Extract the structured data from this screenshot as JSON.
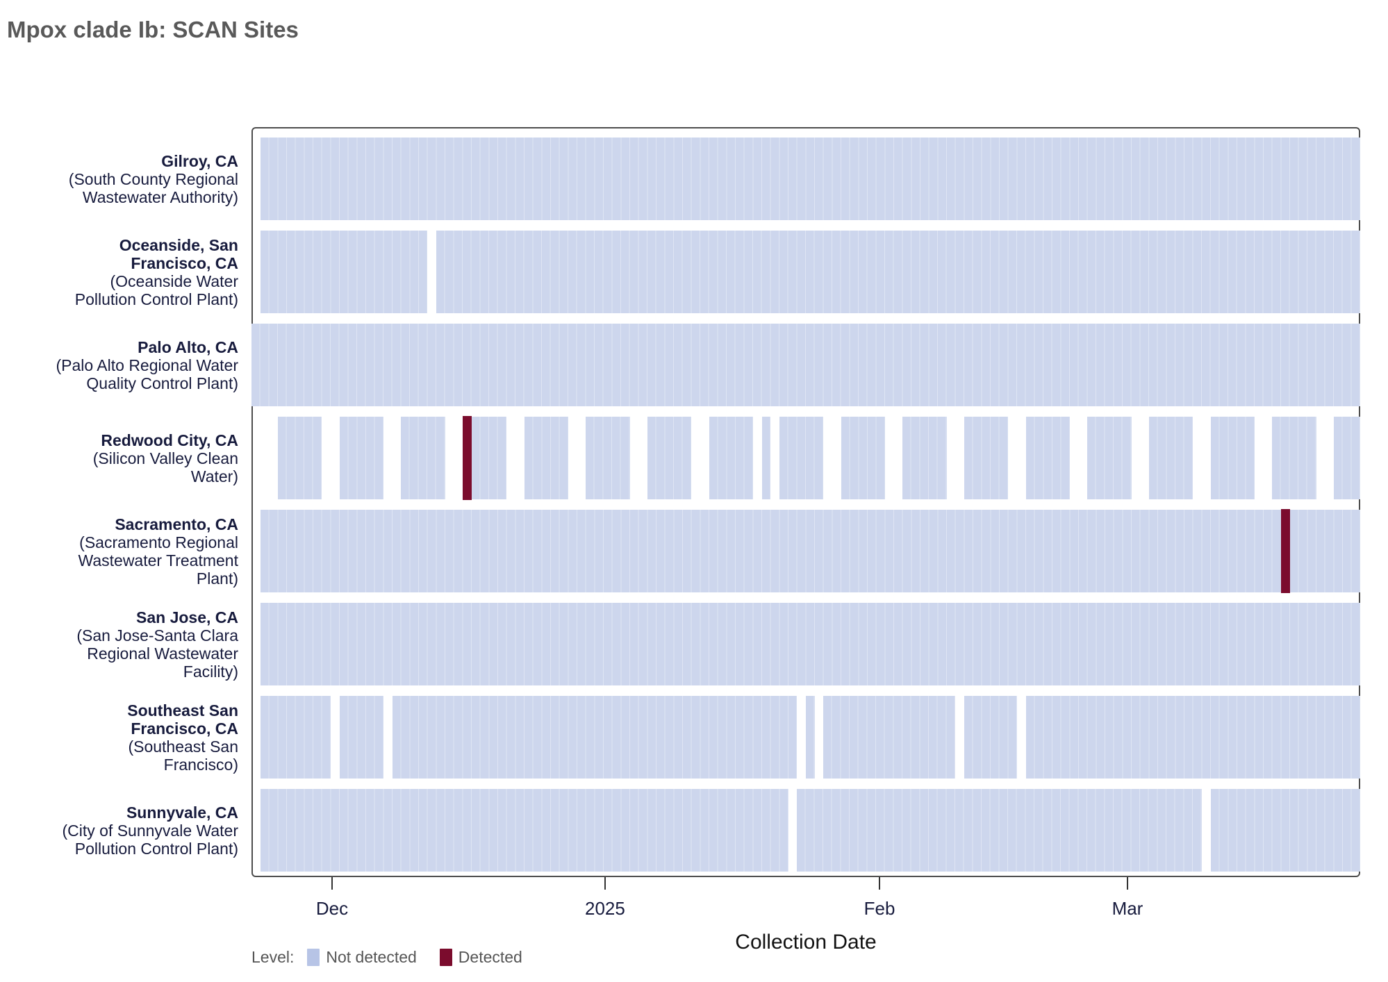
{
  "page": {
    "title": "Mpox clade Ib: SCAN Sites"
  },
  "x_axis": {
    "title": "Collection Date",
    "ticks": [
      {
        "label": "Dec",
        "day": 9.16
      },
      {
        "label": "2025",
        "day": 40.18
      },
      {
        "label": "Feb",
        "day": 71.37
      },
      {
        "label": "Mar",
        "day": 99.55
      }
    ]
  },
  "legend": {
    "label": "Level:",
    "items": [
      {
        "label": "Not detected",
        "color": "#b7c4e6"
      },
      {
        "label": "Detected",
        "color": "#7b0c2d"
      }
    ]
  },
  "colors": {
    "tile": "#cdd6ed",
    "tile_separator": "#dfe5f4",
    "detected": "#7b0c2d",
    "plot_border": "#4d4d4d",
    "title_text": "#595959",
    "axis_text": "#171b3d",
    "legend_text": "#555555"
  },
  "chart_data": {
    "type": "heatmap",
    "title": "Mpox clade Ib: SCAN Sites",
    "xlabel": "Collection Date",
    "x_tick_labels": [
      "Dec",
      "2025",
      "Feb",
      "Mar"
    ],
    "x_range_days": 126,
    "x_range_note": "daily tiles from late Nov 2024 through late Mar 2025",
    "legend_entries": [
      "Not detected",
      "Detected"
    ],
    "rows": [
      {
        "city_lines": [
          "Gilroy, CA"
        ],
        "facility_lines": [
          "(South County Regional",
          "Wastewater Authority)"
        ],
        "segments": [
          [
            1,
            125
          ]
        ],
        "detected_days": []
      },
      {
        "city_lines": [
          "Oceanside, San",
          "Francisco, CA"
        ],
        "facility_lines": [
          "(Oceanside Water",
          "Pollution Control Plant)"
        ],
        "segments": [
          [
            1,
            19
          ],
          [
            21,
            125
          ]
        ],
        "detected_days": []
      },
      {
        "city_lines": [
          "Palo Alto, CA"
        ],
        "facility_lines": [
          "(Palo Alto Regional Water",
          "Quality Control Plant)"
        ],
        "segments": [
          [
            0,
            125
          ]
        ],
        "detected_days": []
      },
      {
        "city_lines": [
          "Redwood City, CA"
        ],
        "facility_lines": [
          "(Silicon Valley Clean",
          "Water)"
        ],
        "segments": [
          [
            3,
            7
          ],
          [
            10,
            14
          ],
          [
            17,
            21
          ],
          [
            24,
            28
          ],
          [
            31,
            35
          ],
          [
            38,
            42
          ],
          [
            45,
            49
          ],
          [
            52,
            56
          ],
          [
            58,
            58
          ],
          [
            60,
            64
          ],
          [
            67,
            71
          ],
          [
            74,
            78
          ],
          [
            81,
            85
          ],
          [
            88,
            92
          ],
          [
            95,
            99
          ],
          [
            102,
            106
          ],
          [
            109,
            113
          ],
          [
            116,
            120
          ],
          [
            123,
            125
          ]
        ],
        "detected_days": [
          24
        ]
      },
      {
        "city_lines": [
          "Sacramento, CA"
        ],
        "facility_lines": [
          "(Sacramento Regional",
          "Wastewater Treatment",
          "Plant)"
        ],
        "segments": [
          [
            1,
            125
          ]
        ],
        "detected_days": [
          117
        ]
      },
      {
        "city_lines": [
          "San Jose, CA"
        ],
        "facility_lines": [
          "(San Jose-Santa Clara",
          "Regional Wastewater",
          "Facility)"
        ],
        "segments": [
          [
            1,
            125
          ]
        ],
        "detected_days": []
      },
      {
        "city_lines": [
          "Southeast San",
          "Francisco, CA"
        ],
        "facility_lines": [
          "(Southeast San",
          "Francisco)"
        ],
        "segments": [
          [
            1,
            8
          ],
          [
            10,
            14
          ],
          [
            16,
            61
          ],
          [
            63,
            63
          ],
          [
            65,
            79
          ],
          [
            81,
            86
          ],
          [
            88,
            125
          ]
        ],
        "detected_days": []
      },
      {
        "city_lines": [
          "Sunnyvale, CA"
        ],
        "facility_lines": [
          "(City of Sunnyvale Water",
          "Pollution Control Plant)"
        ],
        "segments": [
          [
            1,
            60
          ],
          [
            62,
            107
          ],
          [
            109,
            125
          ]
        ],
        "detected_days": []
      }
    ]
  }
}
